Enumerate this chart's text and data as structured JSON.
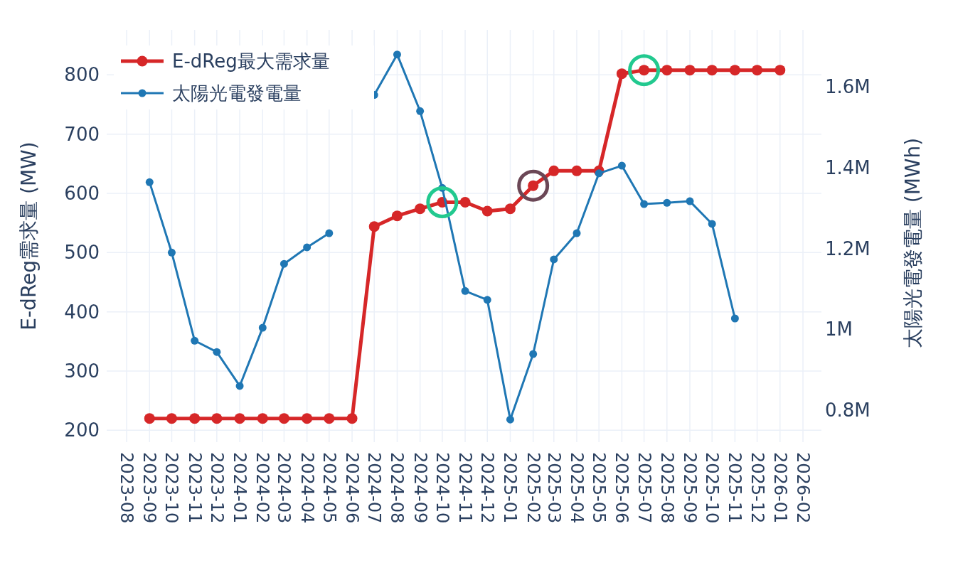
{
  "chart_data": {
    "type": "line",
    "ylabel": "E-dReg需求量 (MW)",
    "y2label": "太陽光電發電量 (MWh)",
    "x": [
      "2023-09",
      "2023-10",
      "2023-11",
      "2023-12",
      "2024-01",
      "2024-02",
      "2024-03",
      "2024-04",
      "2024-05",
      "2024-06",
      "2024-07",
      "2024-08",
      "2024-09",
      "2024-10",
      "2024-11",
      "2024-12",
      "2025-01",
      "2025-02",
      "2025-03",
      "2025-04",
      "2025-05",
      "2025-06",
      "2025-07",
      "2025-08",
      "2025-09",
      "2025-10",
      "2025-11",
      "2025-12",
      "2026-01"
    ],
    "series": [
      {
        "name": "E-dReg最大需求量",
        "color": "#d62728",
        "values": [
          220,
          220,
          220,
          220,
          220,
          220,
          220,
          220,
          220,
          220,
          544,
          562,
          574,
          585,
          585,
          570,
          574,
          613,
          638,
          638,
          638,
          802,
          808,
          808,
          808,
          808,
          808,
          808,
          808
        ]
      },
      {
        "name": "太陽光電發電量",
        "color": "#1f77b4",
        "axis": "y2",
        "values": [
          1364000,
          1190000,
          972000,
          944000,
          860000,
          1004000,
          1162000,
          1203000,
          1238000,
          null,
          1580000,
          1680000,
          1540000,
          1350000,
          1095000,
          1073000,
          777000,
          939000,
          1173000,
          1238000,
          1386000,
          1405000,
          1310000,
          1313000,
          1317000,
          1261000,
          1027000,
          null,
          null
        ]
      }
    ],
    "xlim": [
      "2023-07-05",
      "2026-02-26"
    ],
    "xticks": [
      "2023-08",
      "2023-09",
      "2023-10",
      "2023-11",
      "2023-12",
      "2024-01",
      "2024-02",
      "2024-03",
      "2024-04",
      "2024-05",
      "2024-06",
      "2024-07",
      "2024-08",
      "2024-09",
      "2024-10",
      "2024-11",
      "2024-12",
      "2025-01",
      "2025-02",
      "2025-03",
      "2025-04",
      "2025-05",
      "2025-06",
      "2025-07",
      "2025-08",
      "2025-09",
      "2025-10",
      "2025-11",
      "2025-12",
      "2026-01",
      "2026-02"
    ],
    "ylim": [
      180,
      876
    ],
    "yticks": [
      200,
      300,
      400,
      500,
      600,
      700,
      800
    ],
    "y2lim": [
      721000,
      1741000
    ],
    "y2ticks": [
      {
        "value": 800000,
        "label": "0.8M"
      },
      {
        "value": 1000000,
        "label": "1M"
      },
      {
        "value": 1200000,
        "label": "1.2M"
      },
      {
        "value": 1400000,
        "label": "1.4M"
      },
      {
        "value": 1600000,
        "label": "1.6M"
      }
    ],
    "grid": true,
    "legend": "top left",
    "marker": "circle",
    "line_style": "solid"
  }
}
